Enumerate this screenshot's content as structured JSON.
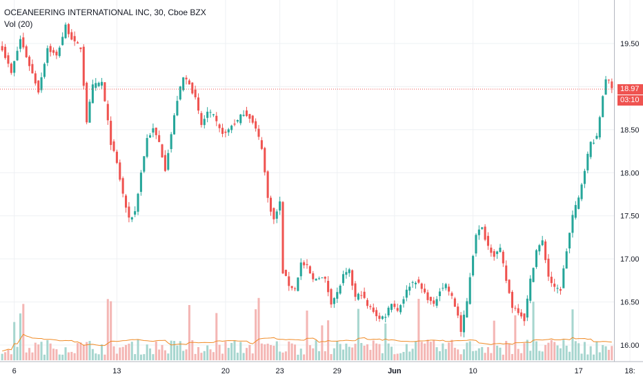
{
  "header": {
    "symbol_line": "OCEANEERING INTERNATIONAL INC, 30, Cboe BZX",
    "volume_label": "Vol (20)"
  },
  "price_tag": {
    "price": "18.97",
    "countdown": "03:10"
  },
  "colors": {
    "up": "#26a69a",
    "down": "#ef5350",
    "up_volume": "#a7d6cf",
    "down_volume": "#f4b6b4",
    "volume_ma": "#f08a24",
    "last_price_line": "#ef5350",
    "grid": "#eef0f3"
  },
  "chart_data": {
    "type": "candlestick",
    "title": "OCEANEERING INTERNATIONAL INC, 30, Cboe BZX",
    "xlabel": "",
    "ylabel": "",
    "y_ticks": [
      16.0,
      16.5,
      17.0,
      17.5,
      18.0,
      18.5,
      19.0,
      19.5
    ],
    "y_tick_labels": [
      "16.00",
      "16.50",
      "17.00",
      "17.50",
      "18.00",
      "18.50",
      "",
      "19.50"
    ],
    "ylim": [
      15.9,
      19.95
    ],
    "x_tick_labels": [
      "6",
      "13",
      "20",
      "23",
      "29",
      "Jun",
      "10",
      "17",
      "18:"
    ],
    "x_tick_bar_index": [
      4,
      38,
      74,
      92,
      111,
      130,
      156,
      191,
      208
    ],
    "last_price": 18.97,
    "indicators": [
      "Vol (20)"
    ],
    "series_anchors": {
      "note_index_close": [
        [
          0,
          19.45
        ],
        [
          3,
          19.15
        ],
        [
          6,
          19.55
        ],
        [
          9,
          19.25
        ],
        [
          12,
          18.95
        ],
        [
          15,
          19.45
        ],
        [
          18,
          19.35
        ],
        [
          21,
          19.7
        ],
        [
          24,
          19.5
        ],
        [
          26,
          19.45
        ],
        [
          28,
          18.6
        ],
        [
          30,
          19.0
        ],
        [
          33,
          19.05
        ],
        [
          36,
          18.35
        ],
        [
          38,
          18.1
        ],
        [
          40,
          17.75
        ],
        [
          42,
          17.45
        ],
        [
          44,
          17.55
        ],
        [
          46,
          18.0
        ],
        [
          48,
          18.4
        ],
        [
          50,
          18.5
        ],
        [
          52,
          18.35
        ],
        [
          54,
          18.05
        ],
        [
          56,
          18.45
        ],
        [
          58,
          18.85
        ],
        [
          60,
          19.1
        ],
        [
          62,
          19.05
        ],
        [
          64,
          18.85
        ],
        [
          66,
          18.55
        ],
        [
          68,
          18.7
        ],
        [
          70,
          18.65
        ],
        [
          72,
          18.5
        ],
        [
          74,
          18.45
        ],
        [
          76,
          18.55
        ],
        [
          78,
          18.6
        ],
        [
          80,
          18.7
        ],
        [
          82,
          18.65
        ],
        [
          84,
          18.5
        ],
        [
          86,
          18.3
        ],
        [
          88,
          17.7
        ],
        [
          90,
          17.45
        ],
        [
          92,
          17.65
        ],
        [
          93,
          16.85
        ],
        [
          95,
          16.7
        ],
        [
          97,
          16.65
        ],
        [
          99,
          16.95
        ],
        [
          101,
          16.9
        ],
        [
          103,
          16.75
        ],
        [
          105,
          16.8
        ],
        [
          107,
          16.75
        ],
        [
          109,
          16.5
        ],
        [
          111,
          16.6
        ],
        [
          113,
          16.8
        ],
        [
          115,
          16.85
        ],
        [
          117,
          16.55
        ],
        [
          119,
          16.6
        ],
        [
          121,
          16.45
        ],
        [
          123,
          16.4
        ],
        [
          125,
          16.3
        ],
        [
          127,
          16.35
        ],
        [
          129,
          16.5
        ],
        [
          131,
          16.4
        ],
        [
          133,
          16.55
        ],
        [
          135,
          16.7
        ],
        [
          137,
          16.75
        ],
        [
          139,
          16.65
        ],
        [
          141,
          16.55
        ],
        [
          143,
          16.45
        ],
        [
          145,
          16.65
        ],
        [
          147,
          16.7
        ],
        [
          149,
          16.55
        ],
        [
          151,
          16.35
        ],
        [
          152,
          16.15
        ],
        [
          154,
          16.5
        ],
        [
          155,
          16.8
        ],
        [
          157,
          17.3
        ],
        [
          159,
          17.35
        ],
        [
          161,
          17.15
        ],
        [
          163,
          17.05
        ],
        [
          165,
          17.1
        ],
        [
          167,
          16.75
        ],
        [
          169,
          16.45
        ],
        [
          171,
          16.4
        ],
        [
          173,
          16.3
        ],
        [
          175,
          16.75
        ],
        [
          177,
          17.1
        ],
        [
          179,
          17.2
        ],
        [
          181,
          16.8
        ],
        [
          183,
          16.65
        ],
        [
          185,
          16.65
        ],
        [
          187,
          17.1
        ],
        [
          189,
          17.5
        ],
        [
          191,
          17.7
        ],
        [
          193,
          18.05
        ],
        [
          195,
          18.35
        ],
        [
          197,
          18.4
        ],
        [
          199,
          18.9
        ],
        [
          200,
          19.1
        ],
        [
          201,
          19.05
        ],
        [
          202,
          18.97
        ]
      ]
    }
  }
}
